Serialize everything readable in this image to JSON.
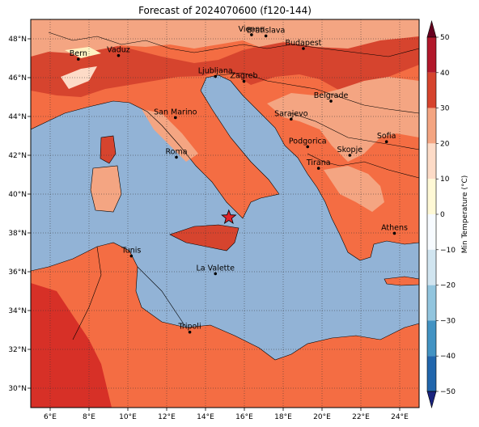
{
  "title": "Forecast of 2024070600 (f120-144)",
  "map": {
    "lon_range": [
      5,
      25
    ],
    "lat_range": [
      29,
      49
    ],
    "lon_ticks": [
      "6°E",
      "8°E",
      "10°E",
      "12°E",
      "14°E",
      "16°E",
      "18°E",
      "20°E",
      "22°E",
      "24°E"
    ],
    "lat_ticks": [
      "48°N",
      "46°N",
      "44°N",
      "42°N",
      "40°N",
      "38°N",
      "36°N",
      "34°N",
      "32°N",
      "30°N"
    ],
    "gridlines": true,
    "marker": {
      "name": "star",
      "lon": 15.2,
      "lat": 38.8,
      "color": "#e0242a"
    }
  },
  "cities": [
    {
      "name": "Bern",
      "lon": 7.45,
      "lat": 46.95
    },
    {
      "name": "Vaduz",
      "lon": 9.52,
      "lat": 47.14
    },
    {
      "name": "Vienna",
      "lon": 16.37,
      "lat": 48.21
    },
    {
      "name": "Bratislava",
      "lon": 17.11,
      "lat": 48.15
    },
    {
      "name": "Budapest",
      "lon": 19.04,
      "lat": 47.5
    },
    {
      "name": "Ljubljana",
      "lon": 14.51,
      "lat": 46.06
    },
    {
      "name": "Zagreb",
      "lon": 15.98,
      "lat": 45.81
    },
    {
      "name": "Belgrade",
      "lon": 20.46,
      "lat": 44.79
    },
    {
      "name": "San Marino",
      "lon": 12.45,
      "lat": 43.94
    },
    {
      "name": "Sarajevo",
      "lon": 18.41,
      "lat": 43.86
    },
    {
      "name": "Sofia",
      "lon": 23.32,
      "lat": 42.7
    },
    {
      "name": "Podgorica",
      "lon": 19.26,
      "lat": 42.44
    },
    {
      "name": "Skopje",
      "lon": 21.43,
      "lat": 42.0
    },
    {
      "name": "Roma",
      "lon": 12.5,
      "lat": 41.9
    },
    {
      "name": "Tirana",
      "lon": 19.82,
      "lat": 41.33
    },
    {
      "name": "Athens",
      "lon": 23.73,
      "lat": 37.98
    },
    {
      "name": "Tunis",
      "lon": 10.18,
      "lat": 36.81
    },
    {
      "name": "La Valette",
      "lon": 14.51,
      "lat": 35.9
    },
    {
      "name": "Tripoli",
      "lon": 13.19,
      "lat": 32.89
    }
  ],
  "colorbar": {
    "label": "Min Temperature (°C)",
    "ticks": [
      "50",
      "40",
      "30",
      "20",
      "10",
      "0",
      "−10",
      "−20",
      "−30",
      "−40",
      "−50"
    ],
    "colors": [
      "#67001f",
      "#b2182b",
      "#d6442e",
      "#f4a582",
      "#fddbc7",
      "#fff9d6",
      "#f7fbff",
      "#d1e5f0",
      "#92c5de",
      "#4393c3",
      "#2166ac",
      "#1a237e"
    ],
    "sea_color": "#92b3d6",
    "land_color": "#f46d43"
  }
}
